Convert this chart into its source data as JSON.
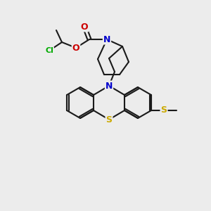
{
  "background_color": "#ececec",
  "bond_color": "#1a1a1a",
  "atom_colors": {
    "N": "#0000cc",
    "O": "#cc0000",
    "S": "#ccaa00",
    "Cl": "#00aa00",
    "C": "#1a1a1a"
  },
  "figsize": [
    3.0,
    3.0
  ],
  "dpi": 100
}
